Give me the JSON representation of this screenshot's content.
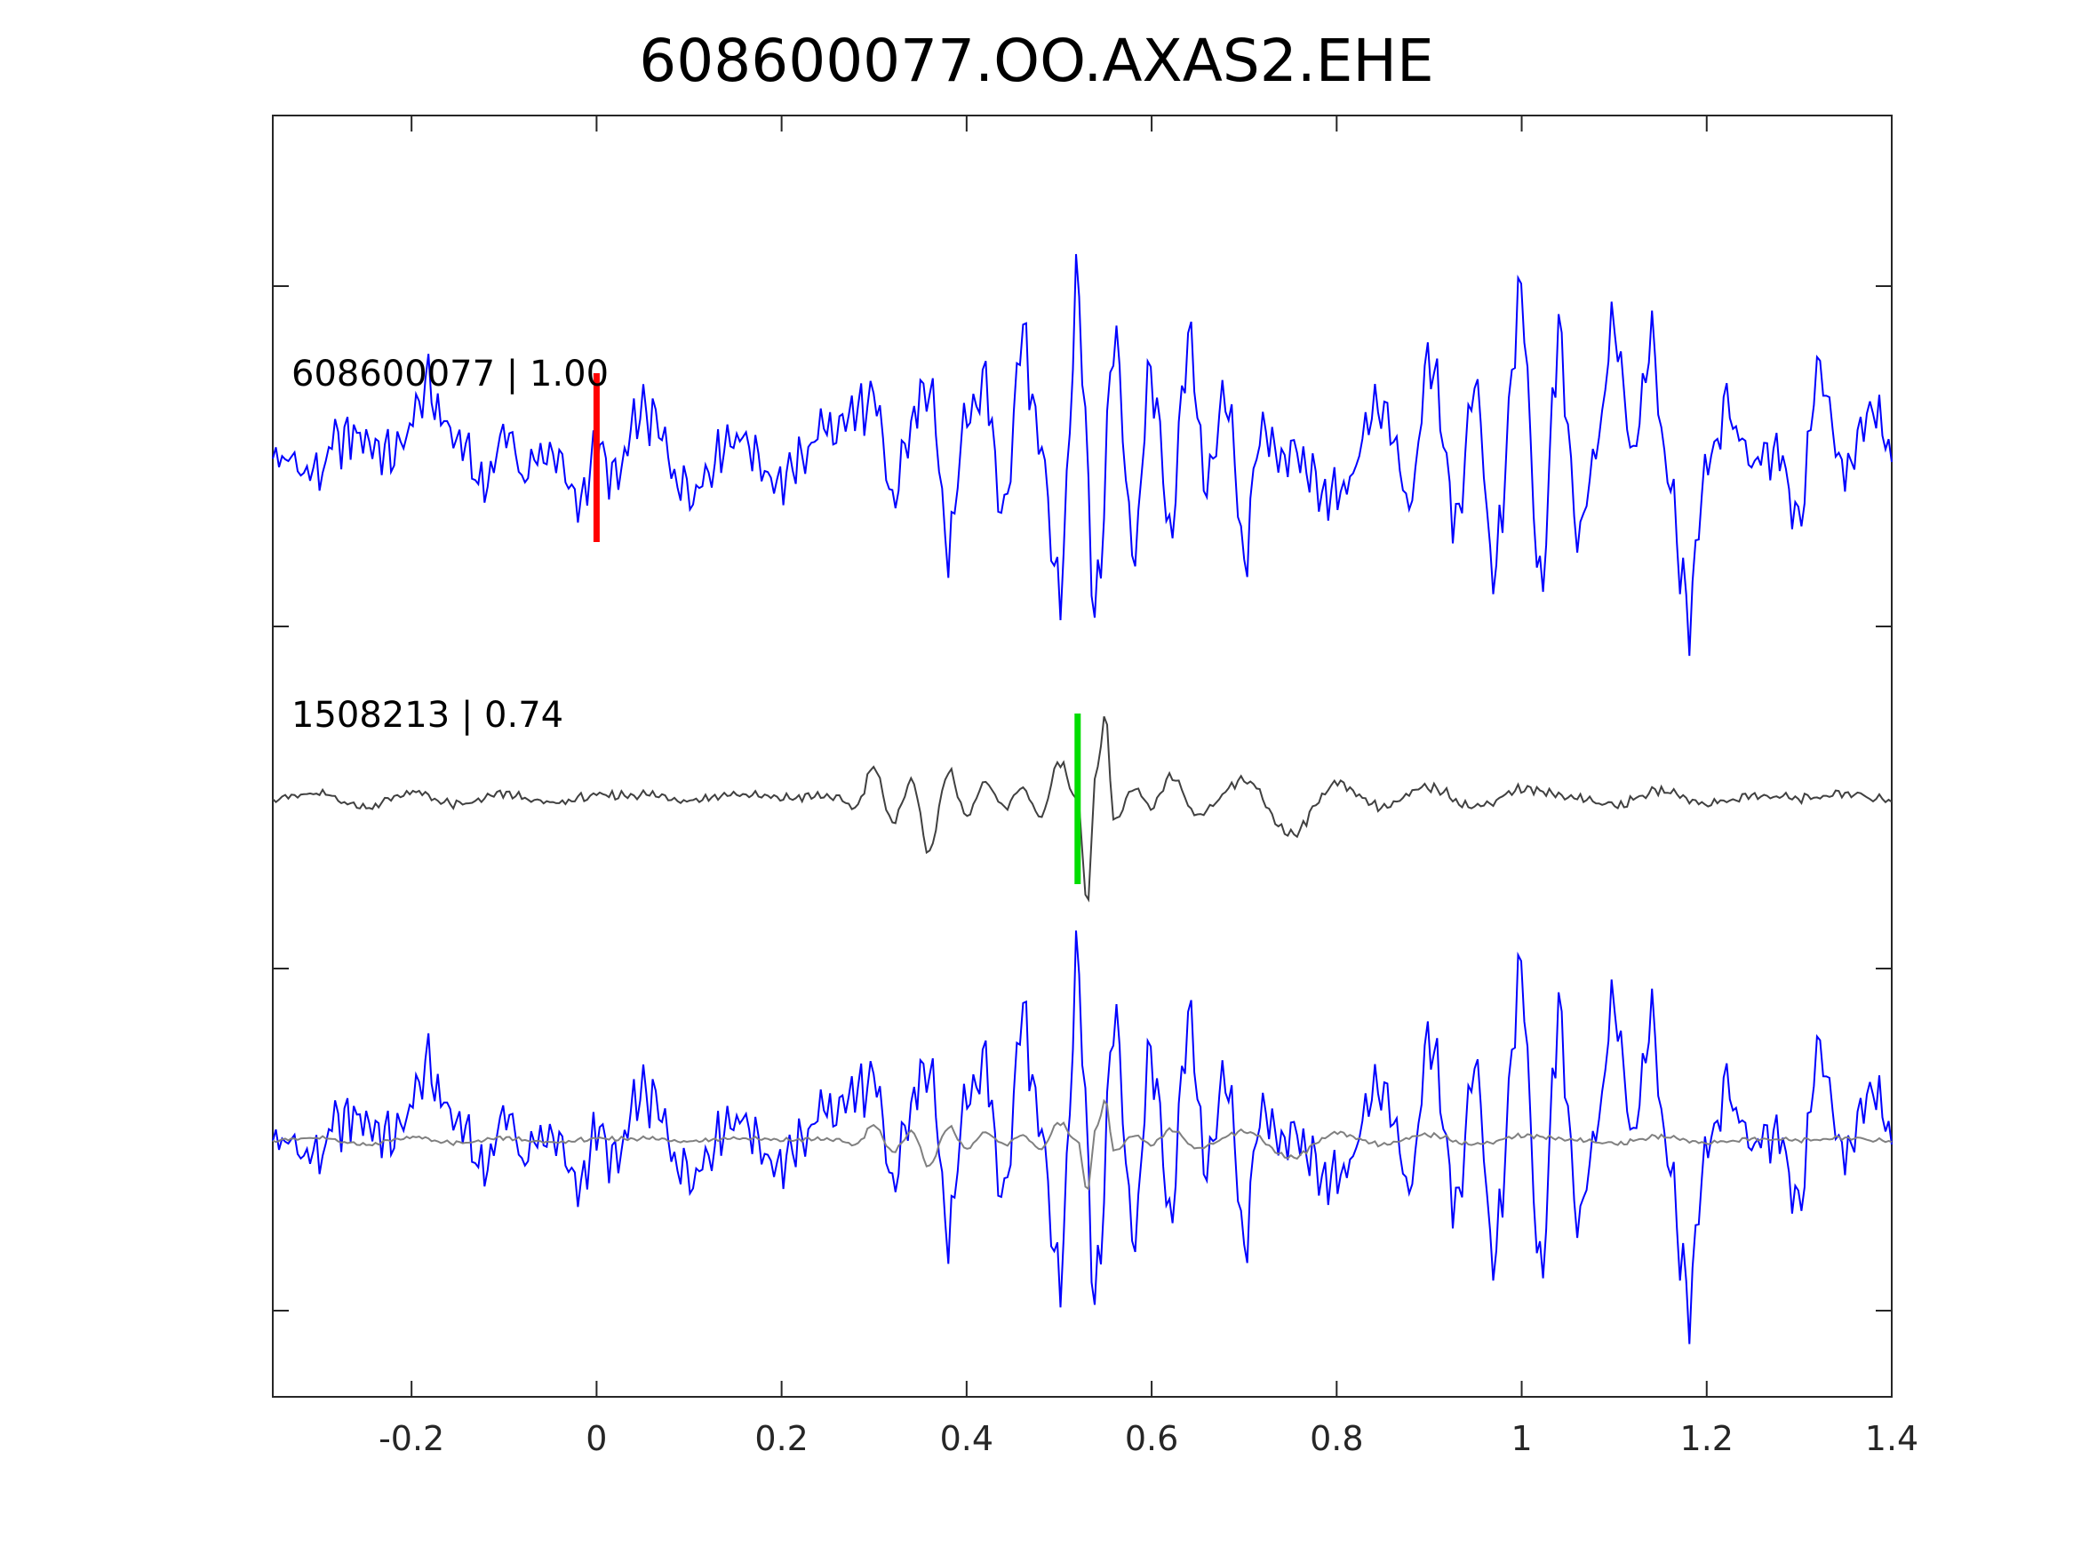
{
  "chart_data": {
    "type": "line",
    "title": "608600077.OO.AXAS2.EHE",
    "xlabel": "",
    "ylabel": "",
    "xlim": [
      -0.35,
      1.4
    ],
    "xticks": [
      -0.2,
      0,
      0.2,
      0.4,
      0.6,
      0.8,
      1,
      1.2,
      1.4
    ],
    "xtick_labels": [
      "-0.2",
      "0",
      "0.2",
      "0.4",
      "0.6",
      "0.8",
      "1",
      "1.2",
      "1.4"
    ],
    "grid": false,
    "legend": "none",
    "panels": [
      {
        "label": "608600077 | 1.00",
        "trace_color": "#0000ff",
        "pick": {
          "x": 0.0,
          "color": "#ff0000"
        }
      },
      {
        "label": "1508213 | 0.74",
        "trace_color": "#404040",
        "pick": {
          "x": 0.52,
          "color": "#00dd00"
        }
      },
      {
        "label": "",
        "overlay": true,
        "trace_colors": [
          "#0000ff",
          "#808080"
        ]
      }
    ],
    "series": [
      {
        "name": "",
        "panel": 0,
        "color": "#0000ff",
        "x": [
          -0.35,
          -0.3,
          -0.28,
          -0.26,
          -0.22,
          -0.18,
          -0.17,
          -0.15,
          -0.12,
          -0.1,
          -0.08,
          -0.05,
          -0.02,
          0.0,
          0.02,
          0.05,
          0.1,
          0.15,
          0.2,
          0.25,
          0.3,
          0.32,
          0.34,
          0.36,
          0.38,
          0.4,
          0.42,
          0.44,
          0.46,
          0.48,
          0.5,
          0.52,
          0.54,
          0.56,
          0.58,
          0.6,
          0.62,
          0.64,
          0.66,
          0.68,
          0.7,
          0.72,
          0.75,
          0.8,
          0.85,
          0.88,
          0.9,
          0.93,
          0.95,
          0.97,
          1.0,
          1.02,
          1.04,
          1.06,
          1.08,
          1.1,
          1.12,
          1.14,
          1.16,
          1.18,
          1.2,
          1.22,
          1.25,
          1.28,
          1.3,
          1.32,
          1.35,
          1.38,
          1.4
        ],
        "y": [
          0.0,
          -0.1,
          0.1,
          0.15,
          0.02,
          0.45,
          0.3,
          0.1,
          -0.2,
          0.2,
          -0.1,
          0.05,
          -0.3,
          0.05,
          -0.15,
          0.3,
          -0.2,
          0.15,
          -0.15,
          0.2,
          0.35,
          -0.3,
          0.2,
          0.55,
          -0.6,
          0.2,
          0.5,
          -0.4,
          0.75,
          0.1,
          -0.85,
          1.05,
          -1.0,
          0.85,
          -0.6,
          0.55,
          -0.5,
          0.8,
          -0.2,
          0.4,
          -0.6,
          0.15,
          0.0,
          -0.25,
          0.35,
          -0.3,
          0.6,
          -0.4,
          0.5,
          -0.75,
          1.05,
          -0.9,
          0.8,
          -0.5,
          0.0,
          0.85,
          0.0,
          0.75,
          -0.2,
          -1.0,
          0.0,
          0.3,
          0.0,
          0.0,
          -0.4,
          0.6,
          -0.1,
          0.3,
          0.0
        ]
      },
      {
        "name": "",
        "panel": 1,
        "color": "#404040",
        "x": [
          -0.35,
          -0.3,
          -0.25,
          -0.2,
          -0.15,
          -0.1,
          -0.05,
          0.0,
          0.05,
          0.1,
          0.15,
          0.2,
          0.25,
          0.28,
          0.3,
          0.32,
          0.34,
          0.36,
          0.38,
          0.4,
          0.42,
          0.44,
          0.46,
          0.48,
          0.5,
          0.52,
          0.53,
          0.54,
          0.55,
          0.56,
          0.58,
          0.6,
          0.62,
          0.65,
          0.7,
          0.75,
          0.8,
          0.85,
          0.9,
          0.95,
          1.0,
          1.05,
          1.1,
          1.15,
          1.2,
          1.25,
          1.3,
          1.35,
          1.4
        ],
        "y": [
          0.0,
          0.02,
          -0.05,
          0.03,
          -0.04,
          0.02,
          -0.03,
          0.01,
          0.02,
          -0.01,
          0.02,
          0.0,
          0.01,
          -0.05,
          0.18,
          -0.15,
          0.1,
          -0.3,
          0.15,
          -0.1,
          0.08,
          -0.05,
          0.05,
          -0.1,
          0.2,
          0.0,
          -0.6,
          0.15,
          0.45,
          -0.15,
          0.05,
          -0.05,
          0.12,
          -0.1,
          0.1,
          -0.2,
          0.08,
          -0.05,
          0.06,
          -0.05,
          0.05,
          0.01,
          -0.04,
          0.04,
          -0.03,
          0.01,
          0.0,
          0.02,
          -0.01
        ]
      },
      {
        "name": "",
        "panel": 2,
        "color": "#0000ff",
        "copy_of": 0
      },
      {
        "name": "",
        "panel": 2,
        "color": "#808080",
        "copy_of": 1,
        "scale": 0.55
      }
    ]
  }
}
